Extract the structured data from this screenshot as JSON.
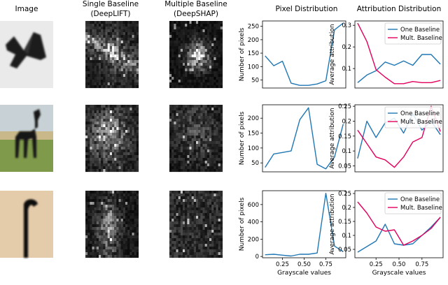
{
  "headers": {
    "image": "Image",
    "single_line1": "Single Baseline",
    "single_line2": "(DeepLIFT)",
    "multiple_line1": "Multiple Baseline",
    "multiple_line2": "(DeepSHAP)",
    "pixel": "Pixel Distribution",
    "attribution": "Attribution Distribution"
  },
  "colors": {
    "one_baseline": "#1f77b4",
    "mult_baseline": "#e3005f"
  },
  "chart_data": [
    {
      "type": "line",
      "panel": "pixel",
      "row": 0,
      "ylabel": "Number of pixels",
      "xlabel": "",
      "xlim": [
        0.02,
        0.98
      ],
      "ylim": [
        20,
        270
      ],
      "yticks": [
        50,
        100,
        150,
        200,
        250
      ],
      "series": [
        {
          "name": "",
          "color": "#1f77b4",
          "x": [
            0.05,
            0.15,
            0.25,
            0.35,
            0.45,
            0.55,
            0.65,
            0.75,
            0.85,
            0.95
          ],
          "y": [
            140,
            103,
            120,
            38,
            30,
            30,
            35,
            47,
            237,
            262
          ]
        }
      ]
    },
    {
      "type": "line",
      "panel": "attribution",
      "row": 0,
      "ylabel": "Average attribution",
      "xlabel": "",
      "xlim": [
        0.02,
        0.98
      ],
      "ylim": [
        0.01,
        0.32
      ],
      "yticks": [
        0.1,
        0.2,
        0.3
      ],
      "legend": "top-right",
      "series": [
        {
          "name": "One Baseline",
          "color": "#1f77b4",
          "x": [
            0.05,
            0.15,
            0.25,
            0.35,
            0.45,
            0.55,
            0.65,
            0.75,
            0.85,
            0.95
          ],
          "y": [
            0.035,
            0.07,
            0.09,
            0.13,
            0.115,
            0.135,
            0.115,
            0.165,
            0.165,
            0.12
          ]
        },
        {
          "name": "Mult. Baseline",
          "color": "#e3005f",
          "x": [
            0.05,
            0.15,
            0.25,
            0.35,
            0.45,
            0.55,
            0.65,
            0.75,
            0.85,
            0.95
          ],
          "y": [
            0.31,
            0.225,
            0.095,
            0.06,
            0.03,
            0.03,
            0.04,
            0.035,
            0.035,
            0.045
          ]
        }
      ]
    },
    {
      "type": "line",
      "panel": "pixel",
      "row": 1,
      "ylabel": "Number of pixels",
      "xlabel": "",
      "xlim": [
        0.02,
        0.98
      ],
      "ylim": [
        20,
        245
      ],
      "yticks": [
        50,
        100,
        150,
        200
      ],
      "series": [
        {
          "name": "",
          "color": "#1f77b4",
          "x": [
            0.05,
            0.15,
            0.25,
            0.35,
            0.45,
            0.55,
            0.65,
            0.75,
            0.85,
            0.95
          ],
          "y": [
            35,
            80,
            85,
            90,
            195,
            235,
            45,
            30,
            70,
            180
          ]
        }
      ]
    },
    {
      "type": "line",
      "panel": "attribution",
      "row": 1,
      "ylabel": "Average attribution",
      "xlabel": "",
      "xlim": [
        0.02,
        0.98
      ],
      "ylim": [
        0.03,
        0.255
      ],
      "yticks": [
        0.05,
        0.1,
        0.15,
        0.2,
        0.25
      ],
      "legend": "top-right",
      "series": [
        {
          "name": "One Baseline",
          "color": "#1f77b4",
          "x": [
            0.05,
            0.15,
            0.25,
            0.35,
            0.45,
            0.55,
            0.65,
            0.75,
            0.85,
            0.95
          ],
          "y": [
            0.075,
            0.2,
            0.145,
            0.195,
            0.21,
            0.16,
            0.225,
            0.17,
            0.2,
            0.155
          ]
        },
        {
          "name": "Mult. Baseline",
          "color": "#e3005f",
          "x": [
            0.05,
            0.15,
            0.25,
            0.35,
            0.45,
            0.55,
            0.65,
            0.75,
            0.85,
            0.95
          ],
          "y": [
            0.17,
            0.125,
            0.08,
            0.07,
            0.045,
            0.08,
            0.13,
            0.145,
            0.25,
            0.165
          ]
        }
      ]
    },
    {
      "type": "line",
      "panel": "pixel",
      "row": 2,
      "ylabel": "Number of pixels",
      "xlabel": "Grayscale values",
      "xlim": [
        0.02,
        0.98
      ],
      "ylim": [
        -15,
        760
      ],
      "yticks": [
        0,
        200,
        400,
        600
      ],
      "xticks": [
        0.25,
        0.5,
        0.75
      ],
      "xticks_fmt": [
        "0.25",
        "0.50",
        "0.75"
      ],
      "series": [
        {
          "name": "",
          "color": "#1f77b4",
          "x": [
            0.05,
            0.15,
            0.25,
            0.35,
            0.45,
            0.55,
            0.65,
            0.75,
            0.85,
            0.95
          ],
          "y": [
            20,
            25,
            15,
            5,
            25,
            25,
            40,
            730,
            120,
            55
          ]
        }
      ]
    },
    {
      "type": "line",
      "panel": "attribution",
      "row": 2,
      "ylabel": "Average attribution",
      "xlabel": "Grayscale values",
      "xlim": [
        0.02,
        0.98
      ],
      "ylim": [
        0.02,
        0.26
      ],
      "yticks": [
        0.05,
        0.1,
        0.15,
        0.2,
        0.25
      ],
      "xticks": [
        0.25,
        0.5,
        0.75
      ],
      "xticks_fmt": [
        "0.25",
        "0.50",
        "0.75"
      ],
      "legend": "top-right",
      "series": [
        {
          "name": "One Baseline",
          "color": "#1f77b4",
          "x": [
            0.05,
            0.15,
            0.25,
            0.35,
            0.45,
            0.55,
            0.65,
            0.75,
            0.85,
            0.95
          ],
          "y": [
            0.04,
            0.06,
            0.08,
            0.14,
            0.07,
            0.065,
            0.07,
            0.1,
            0.13,
            0.165
          ]
        },
        {
          "name": "Mult. Baseline",
          "color": "#e3005f",
          "x": [
            0.05,
            0.15,
            0.25,
            0.35,
            0.45,
            0.55,
            0.65,
            0.75,
            0.85,
            0.95
          ],
          "y": [
            0.22,
            0.18,
            0.13,
            0.115,
            0.12,
            0.065,
            0.08,
            0.1,
            0.125,
            0.165
          ]
        }
      ]
    }
  ]
}
